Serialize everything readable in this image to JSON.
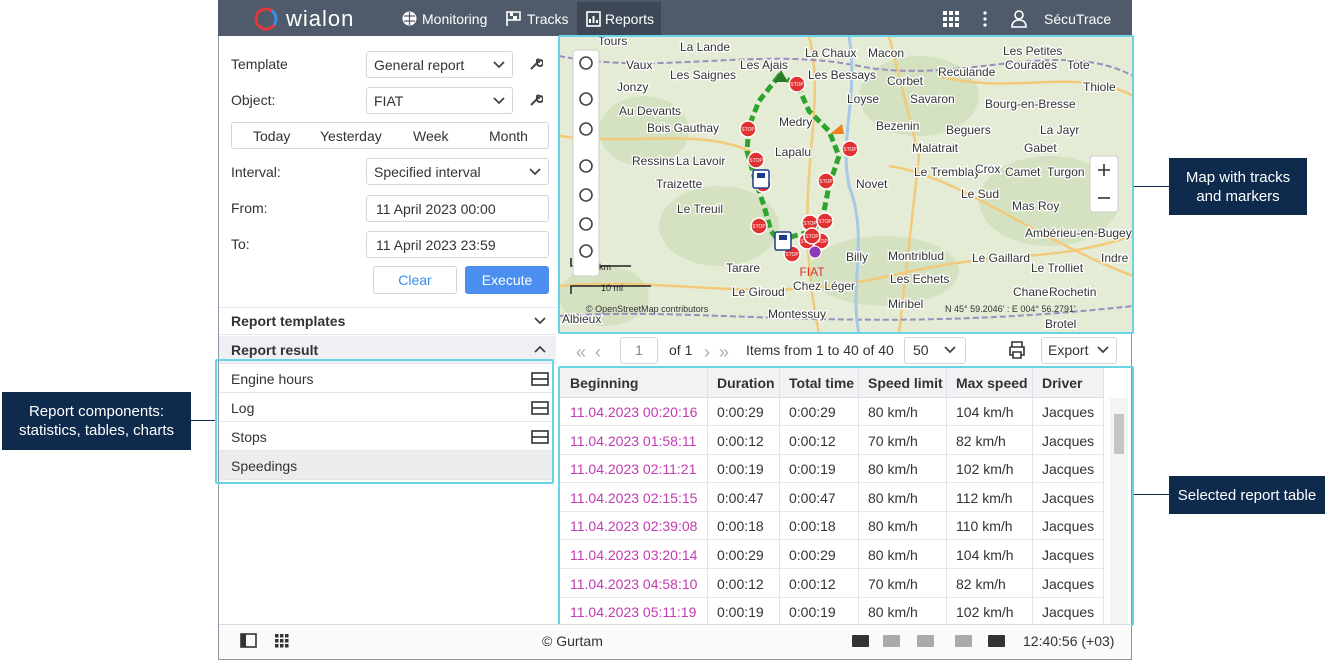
{
  "header": {
    "logo": "wialon",
    "nav": [
      "Monitoring",
      "Tracks",
      "Reports"
    ],
    "user": "SécuTrace"
  },
  "sidebar": {
    "template_label": "Template",
    "template_value": "General report",
    "object_label": "Object:",
    "object_value": "FIAT",
    "periods": [
      "Today",
      "Yesterday",
      "Week",
      "Month"
    ],
    "interval_label": "Interval:",
    "interval_value": "Specified interval",
    "from_label": "From:",
    "from_value": "11 April 2023 00:00",
    "to_label": "To:",
    "to_value": "11 April 2023 23:59",
    "clear": "Clear",
    "execute": "Execute",
    "report_templates": "Report templates",
    "report_result": "Report result",
    "components": [
      "Engine hours",
      "Log",
      "Stops",
      "Speedings"
    ]
  },
  "map": {
    "labels": [
      "Tours",
      "La Lande",
      "La Chaux",
      "Macon",
      "Les Petites",
      "Courades",
      "Vaux",
      "Les Ajais",
      "Les Bessays",
      "Reculande",
      "Tote",
      "Les Saignes",
      "Corbet",
      "Jonzy",
      "Thiole",
      "Loyse",
      "Savaron",
      "Bourg-en-Bresse",
      "Au Devants",
      "Medry",
      "Bois Gauthay",
      "Bezenin",
      "Beguers",
      "La Jayr",
      "Lapalu",
      "Malatrait",
      "Gabet",
      "Ressins",
      "La Lavoir",
      "Novet",
      "Le Tremblay",
      "Crox",
      "Camet",
      "Turgon",
      "Traizette",
      "Le Sud",
      "Le Treuil",
      "Mas Roy",
      "Ambérieu-en-Bugey",
      "Billy",
      "Montriblud",
      "Le Gaillard",
      "Le Trolliet",
      "Indre",
      "Tarare",
      "Les Echets",
      "Chez Léger",
      "Le Giroud",
      "Chanes",
      "Rochetin",
      "Miribel",
      "Albieux",
      "Montessuy",
      "Brotel"
    ],
    "marker_label": "STOP",
    "unit_label": "FIAT",
    "scale_km": "km",
    "scale_mi": "10 mi",
    "attribution": "© OpenStreetMap contributors",
    "coords": "N 45° 59.2046' : E 004° 56.2791'"
  },
  "pager": {
    "page": "1",
    "of": "of 1",
    "items": "Items from 1 to 40 of 40",
    "per_page": "50",
    "export": "Export"
  },
  "table": {
    "columns": [
      "Beginning",
      "Duration",
      "Total time",
      "Speed limit",
      "Max speed",
      "Driver"
    ],
    "rows": [
      [
        "11.04.2023 00:20:16",
        "0:00:29",
        "0:00:29",
        "80 km/h",
        "104 km/h",
        "Jacques"
      ],
      [
        "11.04.2023 01:58:11",
        "0:00:12",
        "0:00:12",
        "70 km/h",
        "82 km/h",
        "Jacques"
      ],
      [
        "11.04.2023 02:11:21",
        "0:00:19",
        "0:00:19",
        "80 km/h",
        "102 km/h",
        "Jacques"
      ],
      [
        "11.04.2023 02:15:15",
        "0:00:47",
        "0:00:47",
        "80 km/h",
        "112 km/h",
        "Jacques"
      ],
      [
        "11.04.2023 02:39:08",
        "0:00:18",
        "0:00:18",
        "80 km/h",
        "110 km/h",
        "Jacques"
      ],
      [
        "11.04.2023 03:20:14",
        "0:00:29",
        "0:00:29",
        "80 km/h",
        "104 km/h",
        "Jacques"
      ],
      [
        "11.04.2023 04:58:10",
        "0:00:12",
        "0:00:12",
        "70 km/h",
        "82 km/h",
        "Jacques"
      ],
      [
        "11.04.2023 05:11:19",
        "0:00:19",
        "0:00:19",
        "80 km/h",
        "102 km/h",
        "Jacques"
      ]
    ]
  },
  "footer": {
    "copyright": "© Gurtam",
    "time": "12:40:56 (+03)"
  },
  "callouts": {
    "map": "Map with tracks and markers",
    "components": "Report components: statistics, tables, charts",
    "table": "Selected report table"
  }
}
